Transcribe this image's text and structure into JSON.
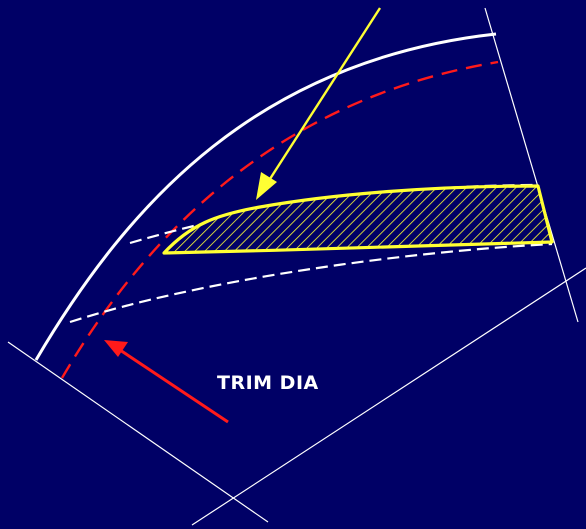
{
  "labels": {
    "trim_dia": "TRIM DIA"
  },
  "colors": {
    "background": "#000066",
    "outline": "#ffffff",
    "trim_line": "#ff1a1a",
    "blade": "#ffff33",
    "pointer_yellow": "#ffff33",
    "pointer_red": "#ff1a1a"
  }
}
